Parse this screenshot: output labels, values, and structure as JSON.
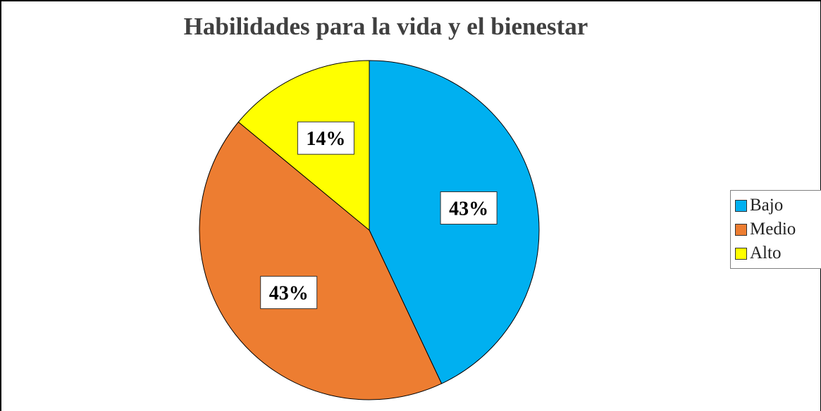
{
  "chart_data": {
    "type": "pie",
    "title": "Habilidades para la vida y el bienestar",
    "categories": [
      "Bajo",
      "Medio",
      "Alto"
    ],
    "values": [
      43,
      43,
      14
    ],
    "data_labels": [
      "43%",
      "43%",
      "14%"
    ],
    "colors": [
      "#00b0f0",
      "#ed7d31",
      "#ffff00"
    ],
    "start_angle_deg": 0,
    "direction": "clockwise",
    "legend_position": "right"
  }
}
